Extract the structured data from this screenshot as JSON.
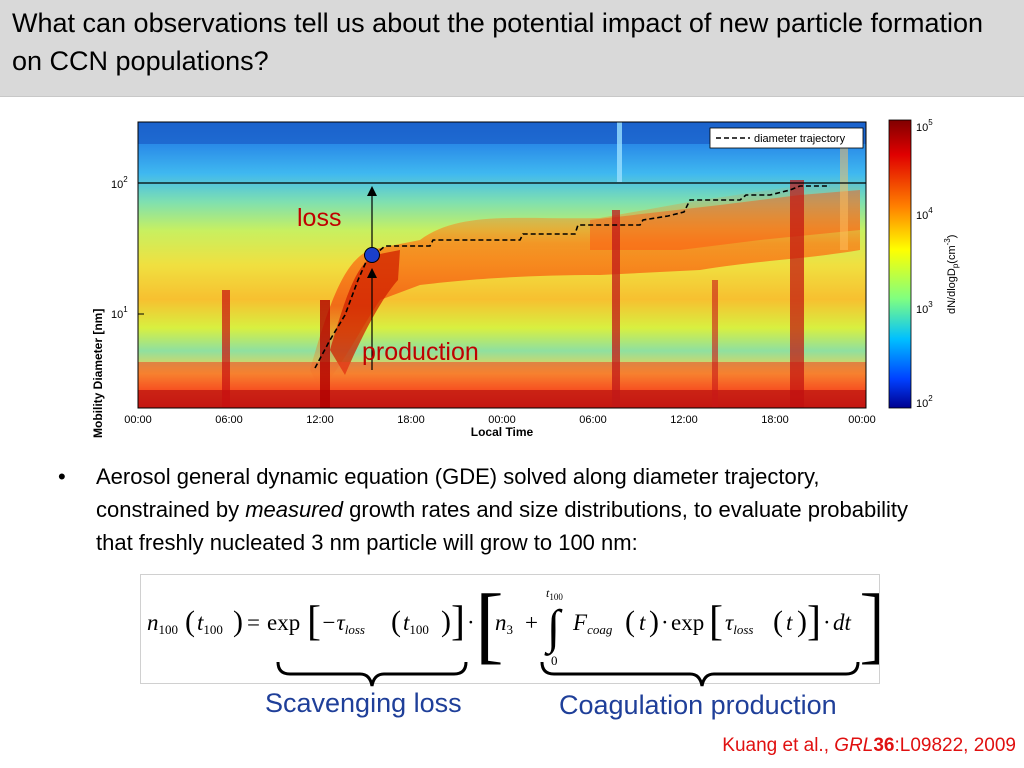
{
  "slide": {
    "title": "What can observations tell us about the potential impact of new particle formation on CCN populations?"
  },
  "figure": {
    "ylabel": "Mobility Diameter [nm]",
    "xlabel": "Local Time",
    "x_ticks": [
      "00:00",
      "06:00",
      "12:00",
      "18:00",
      "00:00",
      "06:00",
      "12:00",
      "18:00",
      "00:00"
    ],
    "y_ticks": [
      {
        "base": "10",
        "exp": "1"
      },
      {
        "base": "10",
        "exp": "2"
      }
    ],
    "legend_label": "diameter trajectory",
    "colorbar_label": "dN/dlogD",
    "colorbar_sub": "p",
    "colorbar_unit": "(cm",
    "colorbar_unit_exp": "-3",
    "colorbar_unit_close": ")",
    "colorbar_ticks": [
      {
        "base": "10",
        "exp": "5"
      },
      {
        "base": "10",
        "exp": "4"
      },
      {
        "base": "10",
        "exp": "3"
      },
      {
        "base": "10",
        "exp": "2"
      }
    ],
    "annotation_loss": "loss",
    "annotation_production": "production",
    "colors": {
      "annotation": "#c00000",
      "marker": "#1a3fcc",
      "frame": "#000000"
    }
  },
  "bullet": {
    "symbol": "•",
    "text_before": "Aerosol general dynamic equation (GDE) solved along diameter trajectory, constrained by ",
    "text_italic": "measured",
    "text_after": " growth rates and size distributions, to evaluate probability that freshly nucleated 3 nm particle will grow to 100 nm:"
  },
  "equation": {
    "lhs_n": "n",
    "lhs_n_sub": "100",
    "lhs_t": "t",
    "lhs_t_sub": "100",
    "equals": "=",
    "exp1": "exp",
    "minus_tau": "−τ",
    "tau_sub": "loss",
    "t_arg": "t",
    "t_arg_sub": "100",
    "dot": "·",
    "n3": "n",
    "n3_sub": "3",
    "plus": "+",
    "int_upper": "t",
    "int_upper_sub": "100",
    "int_lower": "0",
    "F": "F",
    "F_sub": "coag",
    "t2": "t",
    "exp2": "exp",
    "tau2": "τ",
    "tau2_sub": "loss",
    "t3": "t",
    "dt": "dt"
  },
  "labels": {
    "scavenging": "Scavenging loss",
    "coagulation": "Coagulation production"
  },
  "citation": {
    "authors": "Kuang et al., ",
    "journal": "GRL",
    "volume": "36",
    "pages": ":L09822, 2009"
  }
}
